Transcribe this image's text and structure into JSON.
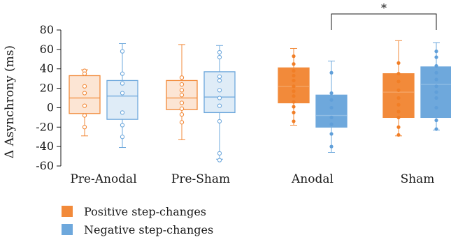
{
  "chart_data": {
    "type": "box",
    "ylabel": "Δ Asynchrony (ms)",
    "ylim": [
      -60,
      80
    ],
    "yticks": [
      -60,
      -40,
      -20,
      0,
      20,
      40,
      60,
      80
    ],
    "categories": [
      "Pre-Anodal",
      "Pre-Sham",
      "Anodal",
      "Sham"
    ],
    "series": [
      {
        "name": "Positive step-changes",
        "color": "#f28a3a",
        "boxes": [
          {
            "min": -29,
            "q1": -6,
            "median": 10,
            "q3": 33,
            "max": 39,
            "points": [
              38,
              35,
              22,
              15,
              2,
              -8,
              -20
            ]
          },
          {
            "min": -33,
            "q1": -2,
            "median": 10,
            "q3": 28,
            "max": 65,
            "points": [
              31,
              24,
              18,
              13,
              5,
              -1,
              -7,
              -15
            ]
          },
          {
            "min": -18,
            "q1": 5,
            "median": 22,
            "q3": 41,
            "max": 61,
            "points": [
              53,
              45,
              38,
              33,
              28,
              22,
              17,
              12,
              6,
              1,
              -5,
              -14
            ]
          },
          {
            "min": -29,
            "q1": -10,
            "median": 16,
            "q3": 35,
            "max": 69,
            "points": [
              46,
              35,
              27,
              18,
              10,
              3,
              -4,
              -10,
              -20,
              -28
            ]
          }
        ]
      },
      {
        "name": "Negative step-changes",
        "color": "#6ea8dc",
        "boxes": [
          {
            "min": -41,
            "q1": -12,
            "median": 12,
            "q3": 28,
            "max": 66,
            "points": [
              58,
              35,
              25,
              15,
              -5,
              -18,
              -30
            ]
          },
          {
            "min": -53,
            "q1": -5,
            "median": 11,
            "q3": 37,
            "max": 64,
            "points": [
              57,
              52,
              32,
              28,
              18,
              10,
              2,
              -14,
              -47,
              -54
            ]
          },
          {
            "min": -46,
            "q1": -20,
            "median": -8,
            "q3": 13,
            "max": 48,
            "points": [
              36,
              15,
              8,
              0,
              -10,
              -17,
              -27,
              -40
            ]
          },
          {
            "min": -23,
            "q1": -10,
            "median": 24,
            "q3": 42,
            "max": 67,
            "points": [
              58,
              52,
              43,
              36,
              29,
              22,
              16,
              10,
              0,
              -13,
              -22
            ]
          }
        ]
      }
    ],
    "annotations": [
      {
        "type": "bracket",
        "text": "*",
        "from": "Anodal",
        "to": "Sham"
      }
    ]
  }
}
